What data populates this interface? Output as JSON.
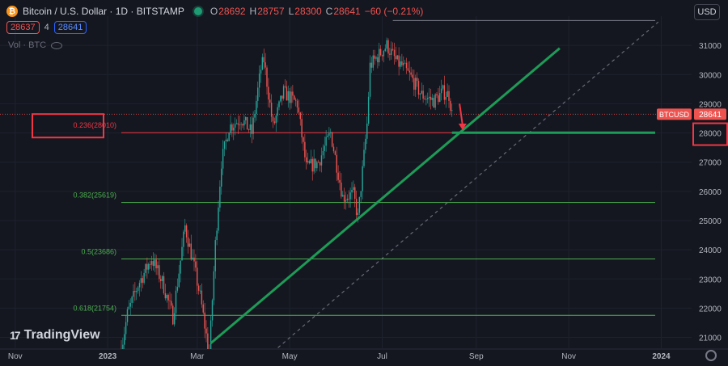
{
  "header": {
    "symbol_title": "Bitcoin / U.S. Dollar · 1D · BITSTAMP",
    "coin_glyph": "₿",
    "ohlc": [
      {
        "k": "O",
        "v": "28692"
      },
      {
        "k": "H",
        "v": "28757"
      },
      {
        "k": "L",
        "v": "28300"
      },
      {
        "k": "C",
        "v": "28641"
      },
      {
        "k": "",
        "v": "−60 (−0.21%)"
      }
    ],
    "sell_price": "28637",
    "spread": "4",
    "buy_price": "28641",
    "volume_label": "Vol · BTC",
    "currency": "USD"
  },
  "branding": {
    "logo_text": "TradingView",
    "logo_mark": "17"
  },
  "colors": {
    "up": "#26a69a",
    "down": "#ef5350",
    "fib_23": "#f23645",
    "fib_other": "#4caf50",
    "trend": "#1e9b56",
    "arrow": "#f23645",
    "highlight": "#f23645"
  },
  "chart_data": {
    "type": "candlestick",
    "symbol": "BTCUSD",
    "exchange": "BITSTAMP",
    "interval": "1D",
    "ylim": [
      20600,
      32000
    ],
    "y_ticks": [
      21000,
      22000,
      23000,
      24000,
      25000,
      26000,
      27000,
      28000,
      29000,
      30000,
      31000
    ],
    "x_ticks": [
      "Nov",
      "2023",
      "Mar",
      "May",
      "Jul",
      "Sep",
      "Nov",
      "2024"
    ],
    "x_tick_dates": [
      "2022-11-01",
      "2023-01-01",
      "2023-03-01",
      "2023-05-01",
      "2023-07-01",
      "2023-09-01",
      "2023-11-01",
      "2024-01-01"
    ],
    "x_range": [
      "2022-10-22",
      "2024-01-21"
    ],
    "last_price": 28641,
    "last_price_label": "BTCUSD",
    "fib_levels": [
      {
        "label": "0.236(28010)",
        "value": 28010
      },
      {
        "label": "0.382(25619)",
        "value": 25619
      },
      {
        "label": "0.5(23686)",
        "value": 23686
      },
      {
        "label": "0.618(21754)",
        "value": 21754
      }
    ],
    "price_path": [
      [
        "2023-01-10",
        20600
      ],
      [
        "2023-01-14",
        21800
      ],
      [
        "2023-01-21",
        22800
      ],
      [
        "2023-01-30",
        23700
      ],
      [
        "2023-02-06",
        22900
      ],
      [
        "2023-02-13",
        21700
      ],
      [
        "2023-02-21",
        24800
      ],
      [
        "2023-02-27",
        23400
      ],
      [
        "2023-03-03",
        22400
      ],
      [
        "2023-03-09",
        20400
      ],
      [
        "2023-03-13",
        24200
      ],
      [
        "2023-03-17",
        27000
      ],
      [
        "2023-03-22",
        28200
      ],
      [
        "2023-03-30",
        28500
      ],
      [
        "2023-04-06",
        28000
      ],
      [
        "2023-04-12",
        30200
      ],
      [
        "2023-04-14",
        30500
      ],
      [
        "2023-04-20",
        28200
      ],
      [
        "2023-04-27",
        29400
      ],
      [
        "2023-05-06",
        29000
      ],
      [
        "2023-05-12",
        26800
      ],
      [
        "2023-05-20",
        27000
      ],
      [
        "2023-05-28",
        28000
      ],
      [
        "2023-06-05",
        25800
      ],
      [
        "2023-06-12",
        25900
      ],
      [
        "2023-06-15",
        25100
      ],
      [
        "2023-06-21",
        28300
      ],
      [
        "2023-06-23",
        30300
      ],
      [
        "2023-07-04",
        31000
      ],
      [
        "2023-07-11",
        30400
      ],
      [
        "2023-07-14",
        30300
      ],
      [
        "2023-07-20",
        29900
      ],
      [
        "2023-07-27",
        29300
      ],
      [
        "2023-08-04",
        29100
      ],
      [
        "2023-08-10",
        29400
      ],
      [
        "2023-08-14",
        29300
      ],
      [
        "2023-08-16",
        28641
      ]
    ],
    "trendline": {
      "points": [
        [
          "2023-03-10",
          20800
        ],
        [
          "2023-10-26",
          30900
        ]
      ]
    },
    "dashed_trendline": {
      "points": [
        [
          "2023-04-20",
          20500
        ],
        [
          "2023-12-30",
          31800
        ]
      ]
    },
    "support_line": {
      "value": 28010,
      "from": "2023-08-16",
      "to": "2023-12-28"
    },
    "arrow": {
      "from": [
        "2023-08-21",
        29000
      ],
      "to": [
        "2023-08-23",
        28100
      ]
    },
    "top_line": {
      "value": 31850,
      "from": "2023-07-08",
      "to": "2023-12-28"
    },
    "highlights": [
      "0.236 fib label",
      "28000 price axis label"
    ]
  }
}
